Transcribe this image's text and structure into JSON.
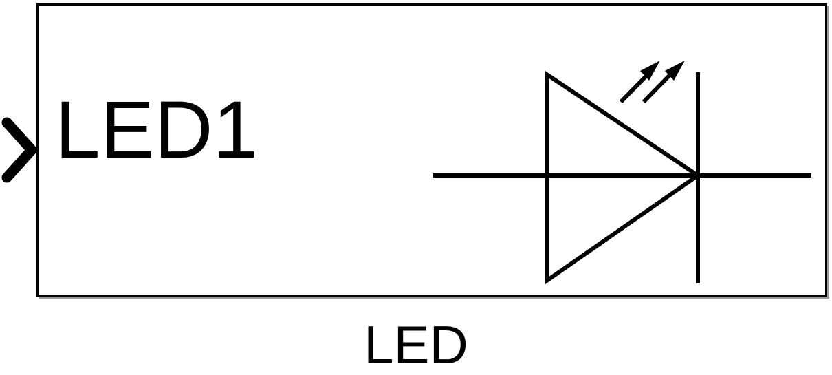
{
  "block": {
    "port_label": "LED1",
    "name": "LED",
    "symbol_icon": "led-diode-icon",
    "input_port_icon": "chevron-right-icon"
  },
  "colors": {
    "stroke": "#000000",
    "background": "#ffffff",
    "shadow": "#9a9a9a"
  }
}
